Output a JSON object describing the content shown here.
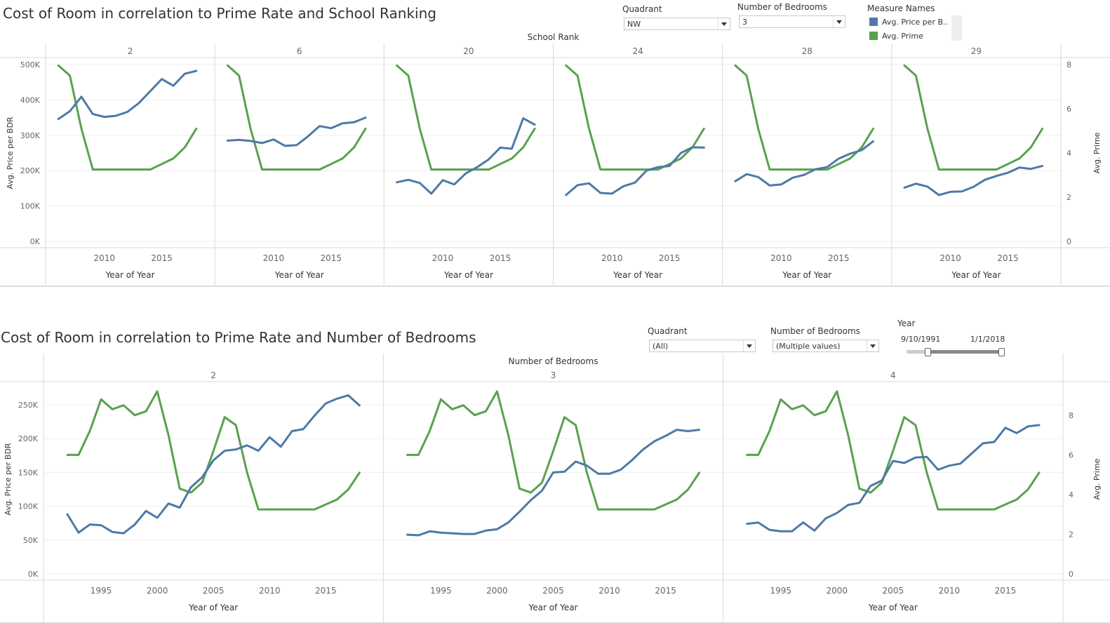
{
  "dashboard": {
    "top": {
      "title": "Cost of Room in correlation to Prime Rate and School Ranking",
      "filters": {
        "quadrant_label": "Quadrant",
        "quadrant_value": "NW",
        "bedrooms_label": "Number of Bedrooms",
        "bedrooms_value": "3"
      },
      "legend": {
        "title": "Measure Names",
        "items": [
          {
            "label": "Avg. Price per B..",
            "color": "#4e79a7"
          },
          {
            "label": "Avg. Prime",
            "color": "#59a14f"
          }
        ]
      }
    },
    "bottom": {
      "title": "Cost of Room in correlation to Prime Rate and Number of Bedrooms",
      "filters": {
        "quadrant_label": "Quadrant",
        "quadrant_value": "(All)",
        "bedrooms_label": "Number of Bedrooms",
        "bedrooms_value": "(Multiple values)",
        "year_label": "Year",
        "year_start": "9/10/1991",
        "year_end": "1/1/2018",
        "year_range_fraction": [
          0.0,
          1.0
        ]
      }
    }
  },
  "chart_data": [
    {
      "type": "line",
      "header": "School Rank",
      "xlabel": "Year of Year",
      "ylabel": "Avg. Price per BDR",
      "y2label": "Avg. Prime",
      "xlim": [
        2005.5,
        2019
      ],
      "ylim": [
        0,
        500000
      ],
      "y2lim": [
        0,
        8
      ],
      "x_ticks": [
        2010,
        2015
      ],
      "y_ticks": [
        0,
        100000,
        200000,
        300000,
        400000,
        500000
      ],
      "y_tick_labels": [
        "0K",
        "100K",
        "200K",
        "300K",
        "400K",
        "500K"
      ],
      "y2_ticks": [
        0,
        2,
        4,
        6,
        8
      ],
      "y2_tick_labels": [
        "0",
        "2",
        "4",
        "6",
        "8"
      ],
      "grid": true,
      "x": [
        2006,
        2007,
        2008,
        2009,
        2010,
        2011,
        2012,
        2013,
        2014,
        2015,
        2016,
        2017,
        2018
      ],
      "prime": [
        7.96,
        7.5,
        5.1,
        3.25,
        3.25,
        3.25,
        3.25,
        3.25,
        3.25,
        3.5,
        3.75,
        4.25,
        5.1
      ],
      "panels": [
        {
          "label": "2",
          "price": [
            346000,
            368000,
            409000,
            360000,
            352000,
            355000,
            366000,
            391000,
            425000,
            459000,
            440000,
            474000,
            482000
          ]
        },
        {
          "label": "6",
          "price": [
            285000,
            287000,
            284000,
            278000,
            288000,
            270000,
            272000,
            297000,
            326000,
            320000,
            334000,
            337000,
            350000
          ]
        },
        {
          "label": "20",
          "price": [
            167000,
            174000,
            165000,
            135000,
            173000,
            161000,
            192000,
            210000,
            232000,
            265000,
            262000,
            348000,
            330000
          ]
        },
        {
          "label": "24",
          "price": [
            131000,
            159000,
            164000,
            137000,
            135000,
            156000,
            166000,
            200000,
            210000,
            213000,
            250000,
            266000,
            265000
          ]
        },
        {
          "label": "28",
          "price": [
            170000,
            190000,
            182000,
            158000,
            161000,
            180000,
            188000,
            204000,
            210000,
            234000,
            248000,
            258000,
            283000
          ]
        },
        {
          "label": "29",
          "price": [
            152000,
            163000,
            155000,
            131000,
            140000,
            141000,
            154000,
            174000,
            185000,
            194000,
            209000,
            205000,
            213000
          ]
        }
      ],
      "colors": {
        "price": "#4e79a7",
        "prime": "#59a14f"
      }
    },
    {
      "type": "line",
      "header": "Number of Bedrooms",
      "xlabel": "Year of Year",
      "ylabel": "Avg. Price per BDR",
      "y2label": "Avg. Prime",
      "xlim": [
        1990.5,
        2019.5
      ],
      "ylim": [
        0,
        280000
      ],
      "y2lim": [
        0,
        9.55
      ],
      "x_ticks": [
        1995,
        2000,
        2005,
        2010,
        2015
      ],
      "y_ticks": [
        0,
        50000,
        100000,
        150000,
        200000,
        250000
      ],
      "y_tick_labels": [
        "0K",
        "50K",
        "100K",
        "150K",
        "200K",
        "250K"
      ],
      "y2_ticks": [
        0,
        2,
        4,
        6,
        8
      ],
      "y2_tick_labels": [
        "0",
        "2",
        "4",
        "6",
        "8"
      ],
      "grid": true,
      "x": [
        1992,
        1993,
        1994,
        1995,
        1996,
        1997,
        1998,
        1999,
        2000,
        2001,
        2002,
        2003,
        2004,
        2005,
        2006,
        2007,
        2008,
        2009,
        2010,
        2011,
        2012,
        2013,
        2014,
        2015,
        2016,
        2017,
        2018
      ],
      "prime": [
        6.0,
        6.0,
        7.2,
        8.8,
        8.3,
        8.5,
        8.0,
        8.2,
        9.2,
        7.0,
        4.3,
        4.1,
        4.6,
        6.2,
        7.9,
        7.5,
        5.1,
        3.25,
        3.25,
        3.25,
        3.25,
        3.25,
        3.25,
        3.5,
        3.75,
        4.25,
        5.1
      ],
      "panels": [
        {
          "label": "2",
          "price": [
            88000,
            61000,
            73000,
            72000,
            62000,
            60000,
            73000,
            93000,
            83000,
            104000,
            98000,
            128000,
            143000,
            168000,
            182000,
            184000,
            190000,
            182000,
            202000,
            188000,
            211000,
            214000,
            234000,
            252000,
            259000,
            264000,
            249000
          ]
        },
        {
          "label": "3",
          "price": [
            58000,
            57000,
            63000,
            61000,
            60000,
            59000,
            59000,
            64000,
            66000,
            76000,
            92000,
            109000,
            123000,
            150000,
            151000,
            166000,
            160000,
            148000,
            148000,
            154000,
            168000,
            184000,
            196000,
            204000,
            213000,
            211000,
            213000
          ]
        },
        {
          "label": "4",
          "price": [
            74000,
            76000,
            65000,
            63000,
            63000,
            76000,
            64000,
            82000,
            90000,
            102000,
            105000,
            130000,
            138000,
            167000,
            164000,
            172000,
            173000,
            154000,
            160000,
            163000,
            178000,
            193000,
            195000,
            216000,
            208000,
            218000,
            220000
          ]
        }
      ],
      "colors": {
        "price": "#4e79a7",
        "prime": "#59a14f"
      }
    }
  ]
}
